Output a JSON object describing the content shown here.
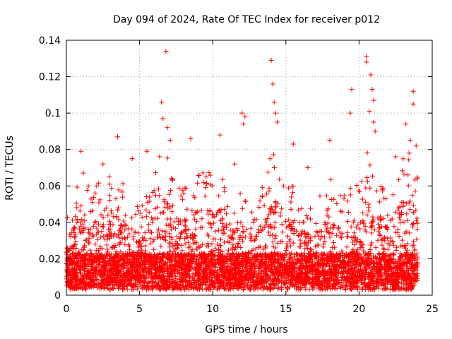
{
  "chart_data": {
    "type": "scatter",
    "title": "Day 094 of 2024, Rate Of TEC Index for receiver p012",
    "xlabel": "GPS time / hours",
    "ylabel": "ROTI / TECUs",
    "xlim": [
      0,
      25
    ],
    "ylim": [
      0,
      0.14
    ],
    "xticks": [
      0,
      5,
      10,
      15,
      20,
      25
    ],
    "xtick_labels": [
      "0",
      "5",
      "10",
      "15",
      "20",
      "25"
    ],
    "yticks": [
      0,
      0.02,
      0.04,
      0.06,
      0.08,
      0.1,
      0.12,
      0.14
    ],
    "ytick_labels": [
      "0",
      "0.02",
      "0.04",
      "0.06",
      "0.08",
      "0.1",
      "0.12",
      "0.14"
    ],
    "grid": true,
    "marker": "plus",
    "marker_color": "#ff0000",
    "envelope": [
      [
        0.0,
        0.035
      ],
      [
        0.5,
        0.045
      ],
      [
        1.0,
        0.065
      ],
      [
        1.5,
        0.05
      ],
      [
        2.0,
        0.05
      ],
      [
        2.5,
        0.06
      ],
      [
        3.0,
        0.06
      ],
      [
        3.5,
        0.065
      ],
      [
        4.0,
        0.05
      ],
      [
        4.5,
        0.045
      ],
      [
        5.0,
        0.04
      ],
      [
        5.5,
        0.045
      ],
      [
        6.0,
        0.06
      ],
      [
        6.5,
        0.07
      ],
      [
        7.0,
        0.065
      ],
      [
        7.5,
        0.055
      ],
      [
        8.0,
        0.05
      ],
      [
        8.5,
        0.06
      ],
      [
        9.0,
        0.06
      ],
      [
        9.5,
        0.065
      ],
      [
        10.0,
        0.055
      ],
      [
        10.5,
        0.065
      ],
      [
        11.0,
        0.045
      ],
      [
        11.5,
        0.045
      ],
      [
        12.0,
        0.05
      ],
      [
        12.5,
        0.045
      ],
      [
        13.0,
        0.04
      ],
      [
        13.5,
        0.055
      ],
      [
        14.0,
        0.07
      ],
      [
        14.5,
        0.065
      ],
      [
        15.0,
        0.055
      ],
      [
        15.5,
        0.05
      ],
      [
        16.0,
        0.045
      ],
      [
        16.5,
        0.04
      ],
      [
        17.0,
        0.04
      ],
      [
        17.5,
        0.05
      ],
      [
        18.0,
        0.065
      ],
      [
        18.5,
        0.055
      ],
      [
        19.0,
        0.045
      ],
      [
        19.5,
        0.05
      ],
      [
        20.0,
        0.055
      ],
      [
        20.5,
        0.07
      ],
      [
        21.0,
        0.06
      ],
      [
        21.5,
        0.055
      ],
      [
        22.0,
        0.05
      ],
      [
        22.5,
        0.06
      ],
      [
        23.0,
        0.065
      ],
      [
        23.5,
        0.07
      ],
      [
        24.0,
        0.06
      ]
    ],
    "outliers": [
      [
        6.5,
        0.106
      ],
      [
        6.8,
        0.134
      ],
      [
        6.6,
        0.097
      ],
      [
        6.9,
        0.092
      ],
      [
        7.1,
        0.085
      ],
      [
        8.5,
        0.086
      ],
      [
        10.5,
        0.088
      ],
      [
        12.0,
        0.1
      ],
      [
        12.1,
        0.094
      ],
      [
        12.2,
        0.098
      ],
      [
        14.0,
        0.129
      ],
      [
        14.1,
        0.116
      ],
      [
        14.2,
        0.106
      ],
      [
        14.3,
        0.1
      ],
      [
        14.4,
        0.095
      ],
      [
        3.5,
        0.087
      ],
      [
        1.0,
        0.079
      ],
      [
        2.5,
        0.072
      ],
      [
        4.5,
        0.075
      ],
      [
        5.5,
        0.079
      ],
      [
        15.5,
        0.083
      ],
      [
        18.0,
        0.085
      ],
      [
        19.5,
        0.113
      ],
      [
        19.4,
        0.1
      ],
      [
        20.5,
        0.131
      ],
      [
        20.5,
        0.128
      ],
      [
        20.8,
        0.121
      ],
      [
        20.9,
        0.113
      ],
      [
        21.0,
        0.107
      ],
      [
        20.7,
        0.101
      ],
      [
        21.0,
        0.095
      ],
      [
        21.1,
        0.09
      ],
      [
        23.2,
        0.094
      ],
      [
        23.5,
        0.085
      ],
      [
        23.7,
        0.112
      ],
      [
        23.7,
        0.105
      ],
      [
        23.9,
        0.082
      ],
      [
        22.5,
        0.076
      ],
      [
        11.5,
        0.072
      ],
      [
        16.5,
        0.07
      ]
    ]
  }
}
